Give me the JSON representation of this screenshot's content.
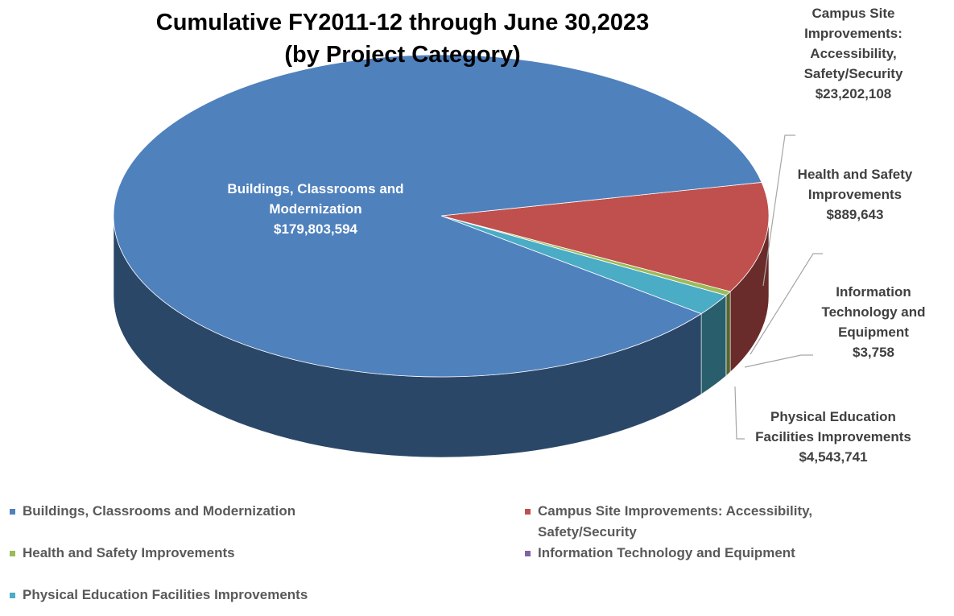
{
  "chart_data": {
    "type": "pie3d",
    "title": [
      "Cumulative FY2011-12 through June 30,2023",
      "(by Project Category)"
    ],
    "categories": [
      "Buildings, Classrooms and Modernization",
      "Campus Site Improvements:  Accessibility, Safety/Security",
      "Health and Safety Improvements",
      "Information Technology and Equipment",
      "Physical Education Facilities Improvements"
    ],
    "values": [
      179803594,
      23202108,
      889643,
      3758,
      4543741
    ],
    "value_labels": [
      "$179,803,594",
      "$23,202,108",
      "$889,643",
      "$3,758",
      "$4,543,741"
    ],
    "colors": [
      "#4f81bd",
      "#c0504d",
      "#9bbb59",
      "#8064a2",
      "#4bacc6"
    ],
    "legend": "bottom"
  }
}
